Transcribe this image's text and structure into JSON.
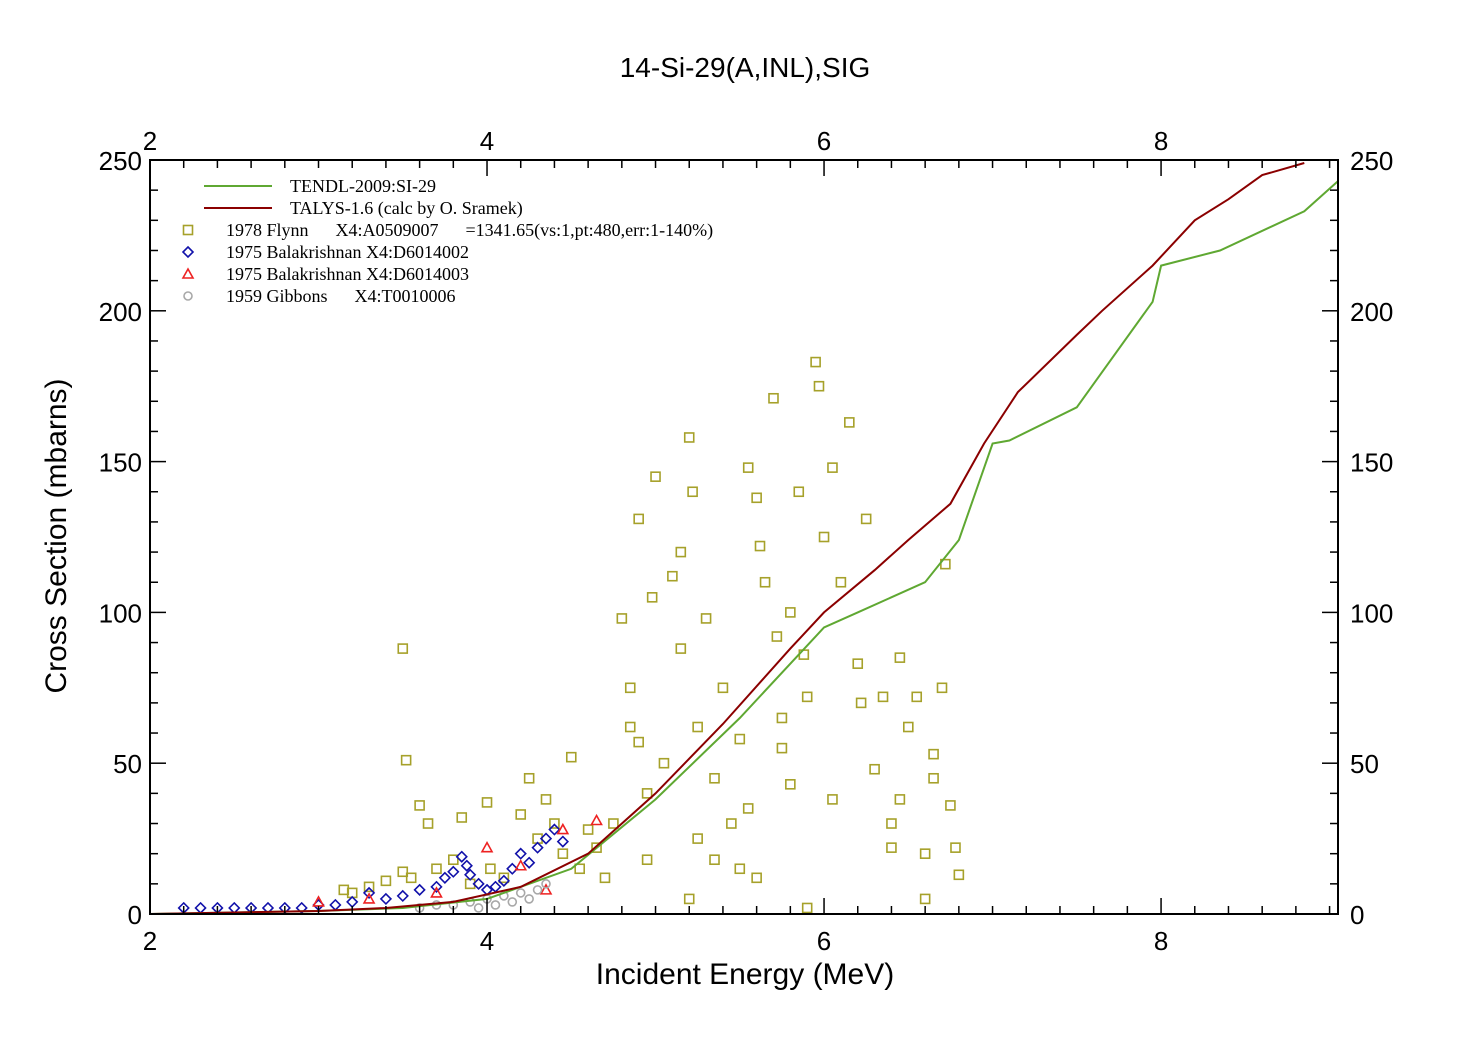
{
  "chart_data": {
    "type": "scatter",
    "title": "14-Si-29(A,INL),SIG",
    "xlabel": "Incident Energy (MeV)",
    "ylabel": "Cross Section (mbarns)",
    "xlim": [
      2,
      9.05
    ],
    "ylim": [
      0,
      250
    ],
    "xticks": [
      2,
      4,
      6,
      8
    ],
    "yticks": [
      0,
      50,
      100,
      150,
      200,
      250
    ],
    "grid": false,
    "legend_position": "top-left",
    "series": [
      {
        "name": "TENDL-2009:SI-29",
        "kind": "line",
        "color": "#5fa832",
        "x": [
          2.0,
          3.0,
          3.5,
          4.0,
          4.5,
          5.0,
          5.5,
          6.0,
          6.2,
          6.6,
          6.8,
          7.0,
          7.1,
          7.5,
          7.95,
          8.0,
          8.35,
          8.85,
          9.05
        ],
        "y": [
          0.0,
          1.0,
          2.0,
          5.0,
          15.0,
          38.0,
          65.0,
          95.0,
          100.0,
          110.0,
          124.0,
          156.0,
          157.0,
          168.0,
          203.0,
          215.0,
          220.0,
          233.0,
          243.0
        ]
      },
      {
        "name": "TALYS-1.6 (calc by O. Sramek)",
        "kind": "line",
        "color": "#8b0000",
        "x": [
          2.0,
          3.0,
          3.4,
          3.8,
          4.2,
          4.6,
          5.0,
          5.4,
          5.8,
          6.0,
          6.3,
          6.5,
          6.75,
          6.95,
          7.15,
          7.5,
          7.65,
          7.95,
          8.2,
          8.4,
          8.6,
          8.85
        ],
        "y": [
          0.0,
          1.0,
          2.0,
          4.0,
          9.0,
          20.0,
          40.0,
          63.0,
          88.0,
          100.0,
          114.0,
          124.0,
          136.0,
          156.0,
          173.0,
          192.0,
          200.0,
          215.0,
          230.0,
          237.0,
          245.0,
          249.0
        ]
      },
      {
        "name": "1978 Flynn      X4:A0509007      =1341.65(vs:1,pt:480,err:1-140%)",
        "kind": "scatter",
        "marker": "square",
        "color": "#a6a12a",
        "points": [
          [
            3.15,
            8
          ],
          [
            3.2,
            7
          ],
          [
            3.3,
            9
          ],
          [
            3.4,
            11
          ],
          [
            3.5,
            14
          ],
          [
            3.5,
            88
          ],
          [
            3.52,
            51
          ],
          [
            3.55,
            12
          ],
          [
            3.6,
            36
          ],
          [
            3.65,
            30
          ],
          [
            3.7,
            15
          ],
          [
            3.8,
            18
          ],
          [
            3.85,
            32
          ],
          [
            3.9,
            10
          ],
          [
            4.0,
            37
          ],
          [
            4.02,
            15
          ],
          [
            4.1,
            12
          ],
          [
            4.2,
            33
          ],
          [
            4.25,
            45
          ],
          [
            4.3,
            25
          ],
          [
            4.35,
            38
          ],
          [
            4.4,
            30
          ],
          [
            4.45,
            20
          ],
          [
            4.5,
            52
          ],
          [
            4.55,
            15
          ],
          [
            4.6,
            28
          ],
          [
            4.65,
            22
          ],
          [
            4.7,
            12
          ],
          [
            4.75,
            30
          ],
          [
            4.8,
            98
          ],
          [
            4.85,
            75
          ],
          [
            4.9,
            57
          ],
          [
            4.95,
            40
          ],
          [
            4.85,
            62
          ],
          [
            4.9,
            131
          ],
          [
            5.0,
            145
          ],
          [
            4.98,
            105
          ],
          [
            5.05,
            50
          ],
          [
            5.1,
            112
          ],
          [
            5.15,
            88
          ],
          [
            5.2,
            158
          ],
          [
            5.22,
            140
          ],
          [
            5.25,
            62
          ],
          [
            5.3,
            98
          ],
          [
            5.35,
            45
          ],
          [
            5.4,
            75
          ],
          [
            5.45,
            30
          ],
          [
            5.5,
            58
          ],
          [
            5.55,
            148
          ],
          [
            5.6,
            138
          ],
          [
            5.62,
            122
          ],
          [
            5.65,
            110
          ],
          [
            5.7,
            171
          ],
          [
            5.72,
            92
          ],
          [
            5.75,
            65
          ],
          [
            5.8,
            43
          ],
          [
            5.85,
            140
          ],
          [
            5.88,
            86
          ],
          [
            5.9,
            72
          ],
          [
            5.95,
            183
          ],
          [
            5.97,
            175
          ],
          [
            6.0,
            125
          ],
          [
            6.05,
            148
          ],
          [
            6.1,
            110
          ],
          [
            6.15,
            163
          ],
          [
            6.2,
            83
          ],
          [
            6.22,
            70
          ],
          [
            6.25,
            131
          ],
          [
            6.3,
            48
          ],
          [
            6.35,
            72
          ],
          [
            6.4,
            30
          ],
          [
            6.45,
            85
          ],
          [
            6.5,
            62
          ],
          [
            6.55,
            72
          ],
          [
            6.6,
            20
          ],
          [
            6.65,
            53
          ],
          [
            6.7,
            75
          ],
          [
            6.72,
            116
          ],
          [
            6.75,
            36
          ],
          [
            6.78,
            22
          ],
          [
            6.8,
            13
          ],
          [
            5.15,
            120
          ],
          [
            5.35,
            18
          ],
          [
            5.6,
            12
          ],
          [
            5.9,
            2
          ],
          [
            6.4,
            22
          ],
          [
            6.65,
            45
          ],
          [
            4.95,
            18
          ],
          [
            5.25,
            25
          ],
          [
            5.55,
            35
          ],
          [
            5.75,
            55
          ],
          [
            6.05,
            38
          ],
          [
            6.45,
            38
          ],
          [
            5.8,
            100
          ],
          [
            5.2,
            5
          ],
          [
            5.5,
            15
          ],
          [
            6.6,
            5
          ]
        ]
      },
      {
        "name": "1975 Balakrishnan X4:D6014002",
        "kind": "scatter",
        "marker": "diamond",
        "color": "#1111aa",
        "points": [
          [
            2.2,
            2
          ],
          [
            2.3,
            2
          ],
          [
            2.4,
            2
          ],
          [
            2.5,
            2
          ],
          [
            2.6,
            2
          ],
          [
            2.7,
            2
          ],
          [
            2.8,
            2
          ],
          [
            2.9,
            2
          ],
          [
            3.0,
            3
          ],
          [
            3.1,
            3
          ],
          [
            3.2,
            4
          ],
          [
            3.3,
            7
          ],
          [
            3.4,
            5
          ],
          [
            3.5,
            6
          ],
          [
            3.6,
            8
          ],
          [
            3.7,
            9
          ],
          [
            3.75,
            12
          ],
          [
            3.8,
            14
          ],
          [
            3.85,
            19
          ],
          [
            3.88,
            16
          ],
          [
            3.9,
            13
          ],
          [
            3.95,
            10
          ],
          [
            4.0,
            8
          ],
          [
            4.05,
            9
          ],
          [
            4.1,
            11
          ],
          [
            4.15,
            15
          ],
          [
            4.2,
            20
          ],
          [
            4.25,
            17
          ],
          [
            4.3,
            22
          ],
          [
            4.35,
            25
          ],
          [
            4.4,
            28
          ],
          [
            4.45,
            24
          ]
        ]
      },
      {
        "name": "1975 Balakrishnan X4:D6014003",
        "kind": "scatter",
        "marker": "triangle",
        "color": "#ee2222",
        "points": [
          [
            3.0,
            4
          ],
          [
            3.3,
            5
          ],
          [
            3.7,
            7
          ],
          [
            4.0,
            22
          ],
          [
            4.2,
            16
          ],
          [
            4.45,
            28
          ],
          [
            4.65,
            31
          ],
          [
            4.35,
            8
          ]
        ]
      },
      {
        "name": "1959 Gibbons      X4:T0010006",
        "kind": "scatter",
        "marker": "circle",
        "color": "#a8a8a8",
        "points": [
          [
            3.6,
            2
          ],
          [
            3.7,
            3
          ],
          [
            3.8,
            3
          ],
          [
            3.9,
            4
          ],
          [
            3.95,
            2
          ],
          [
            4.0,
            5
          ],
          [
            4.05,
            3
          ],
          [
            4.1,
            6
          ],
          [
            4.15,
            4
          ],
          [
            4.2,
            7
          ],
          [
            4.25,
            5
          ],
          [
            4.3,
            8
          ],
          [
            4.35,
            10
          ]
        ]
      }
    ]
  }
}
